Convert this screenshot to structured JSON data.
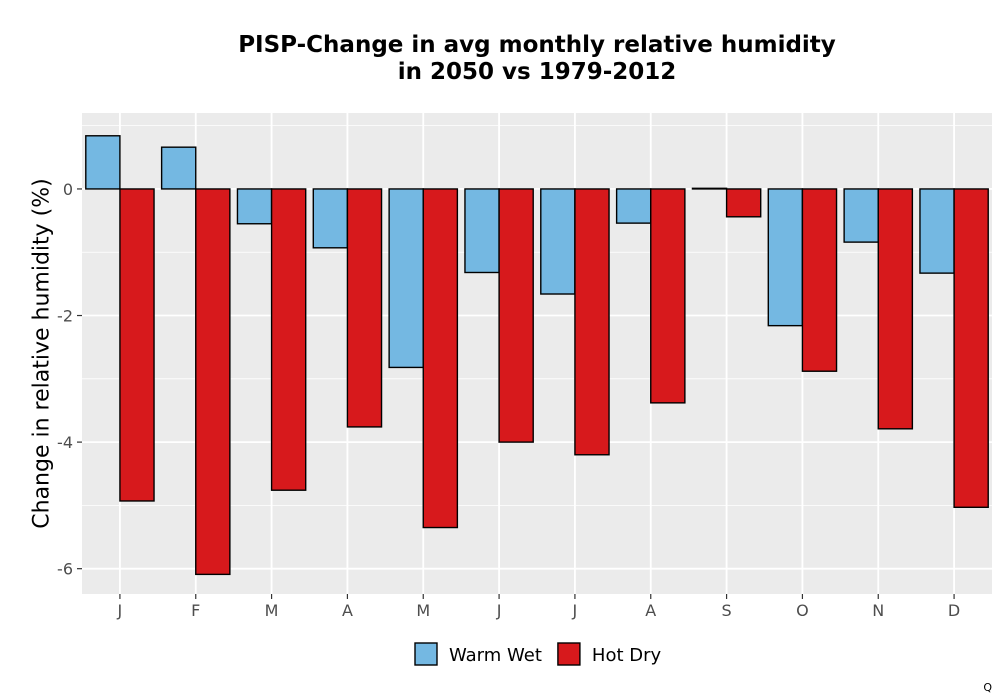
{
  "chart_data": {
    "type": "bar",
    "title_lines": [
      "PISP-Change in avg monthly relative humidity",
      "in 2050 vs 1979-2012"
    ],
    "xlabel": "",
    "ylabel": "Change in relative humidity (%)",
    "categories": [
      "J",
      "F",
      "M",
      "A",
      "M",
      "J",
      "J",
      "A",
      "S",
      "O",
      "N",
      "D"
    ],
    "series": [
      {
        "name": "Warm Wet",
        "color": "#74b8e2",
        "values": [
          0.84,
          0.66,
          -0.55,
          -0.93,
          -2.82,
          -1.32,
          -1.66,
          -0.54,
          0.01,
          -2.16,
          -0.84,
          -1.33
        ]
      },
      {
        "name": "Hot Dry",
        "color": "#d7191c",
        "values": [
          -4.93,
          -6.09,
          -4.76,
          -3.76,
          -5.35,
          -4.0,
          -4.2,
          -3.38,
          -0.44,
          -2.88,
          -3.79,
          -5.03
        ]
      }
    ],
    "ylim": [
      -6.4,
      1.2
    ],
    "yticks": [
      0,
      -2,
      -4,
      -6
    ],
    "ytick_labels": [
      "0",
      "-2",
      "-4",
      "-6"
    ],
    "grid": true,
    "legend_position": "bottom",
    "panel_background": "#ebebeb"
  },
  "corner_text": "Q"
}
